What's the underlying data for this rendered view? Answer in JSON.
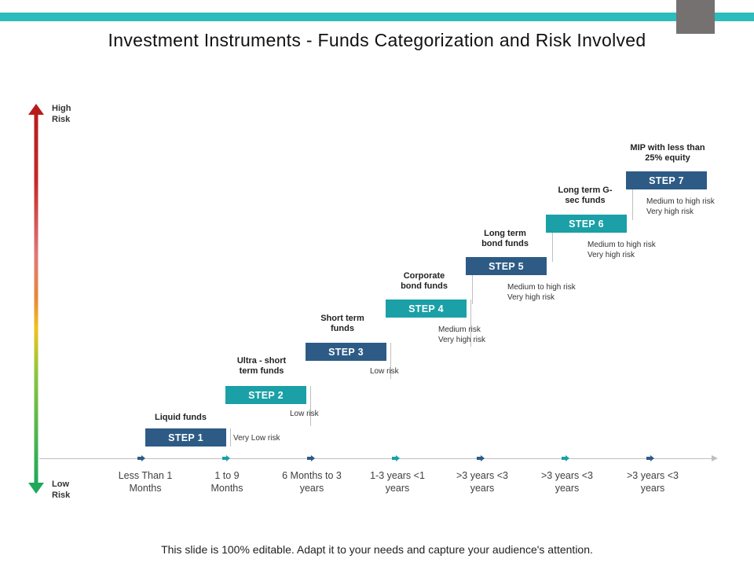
{
  "title": "Investment Instruments - Funds Categorization and Risk Involved",
  "risk_axis": {
    "high_label": [
      "High",
      "Risk"
    ],
    "low_label": [
      "Low",
      "Risk"
    ]
  },
  "colors": {
    "dark_step": "#2d5b86",
    "teal_step": "#1aa0a6",
    "accent_bar": "#2cbcbb"
  },
  "time_labels": [
    [
      "Less Than 1",
      "Months"
    ],
    [
      "1 to 9",
      "Months"
    ],
    [
      "6 Months to 3",
      "years"
    ],
    [
      "1-3 years <1",
      "years"
    ],
    [
      ">3 years <3",
      "years"
    ],
    [
      ">3 years <3",
      "years"
    ],
    [
      ">3 years <3",
      "years"
    ]
  ],
  "steps": [
    {
      "label": "STEP 1",
      "fund": [
        "Liquid funds"
      ],
      "risk": [
        "Very Low risk"
      ]
    },
    {
      "label": "STEP 2",
      "fund": [
        "Ultra - short",
        "term funds"
      ],
      "risk": [
        "Low risk"
      ]
    },
    {
      "label": "STEP 3",
      "fund": [
        "Short term",
        "funds"
      ],
      "risk": [
        "Low risk"
      ]
    },
    {
      "label": "STEP 4",
      "fund": [
        "Corporate",
        "bond funds"
      ],
      "risk": [
        "Medium  risk",
        "Very high risk"
      ]
    },
    {
      "label": "STEP 5",
      "fund": [
        "Long term",
        "bond funds"
      ],
      "risk": [
        "Medium  to high risk",
        "Very high risk"
      ]
    },
    {
      "label": "STEP 6",
      "fund": [
        "Long term G-",
        "sec funds"
      ],
      "risk": [
        "Medium  to high risk",
        "Very high risk"
      ]
    },
    {
      "label": "STEP 7",
      "fund": [
        "MIP with less than",
        "25% equity"
      ],
      "risk": [
        "Medium  to high risk",
        "Very high risk"
      ]
    }
  ],
  "footer": "This slide is 100% editable. Adapt it to your needs and capture your audience's attention."
}
